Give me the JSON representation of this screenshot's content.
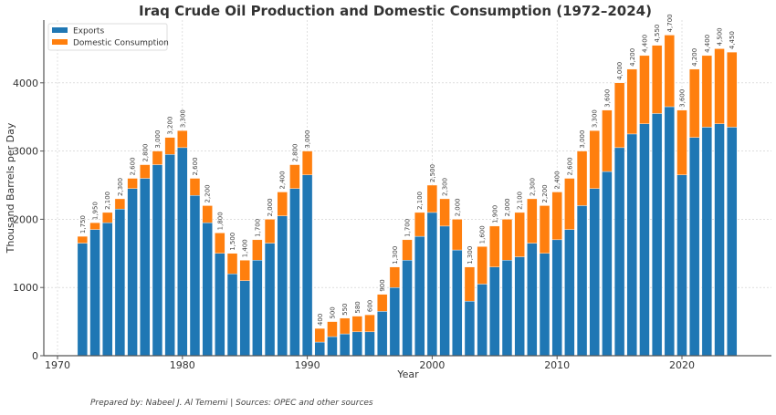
{
  "chart_data": {
    "type": "bar",
    "stacked": true,
    "title": "Iraq Crude Oil Production and Domestic Consumption (1972–2024)",
    "xlabel": "Year",
    "ylabel": "Thousand Barrels per Day",
    "xlim": [
      1968,
      2026
    ],
    "ylim": [
      0,
      4900
    ],
    "xticks": [
      1970,
      1980,
      1990,
      2000,
      2010,
      2020
    ],
    "yticks": [
      0,
      1000,
      2000,
      3000,
      4000
    ],
    "grid": true,
    "legend_position": "top-left",
    "x": [
      1972,
      1973,
      1974,
      1975,
      1976,
      1977,
      1978,
      1979,
      1980,
      1981,
      1982,
      1983,
      1984,
      1985,
      1986,
      1987,
      1988,
      1989,
      1990,
      1991,
      1992,
      1993,
      1994,
      1995,
      1996,
      1997,
      1998,
      1999,
      2000,
      2001,
      2002,
      2003,
      2004,
      2005,
      2006,
      2007,
      2008,
      2009,
      2010,
      2011,
      2012,
      2013,
      2014,
      2015,
      2016,
      2017,
      2018,
      2019,
      2020,
      2021,
      2022,
      2023,
      2024
    ],
    "series": [
      {
        "name": "Exports",
        "color": "#1f77b4",
        "values": [
          1650,
          1850,
          1950,
          2150,
          2450,
          2600,
          2800,
          2950,
          3050,
          2350,
          1950,
          1500,
          1200,
          1100,
          1400,
          1650,
          2050,
          2450,
          2650,
          200,
          280,
          320,
          350,
          350,
          650,
          1000,
          1400,
          1750,
          2100,
          1900,
          1550,
          800,
          1050,
          1300,
          1400,
          1450,
          1650,
          1500,
          1700,
          1850,
          2200,
          2450,
          2700,
          3050,
          3250,
          3400,
          3550,
          3650,
          2650,
          3200,
          3350,
          3400,
          3350
        ]
      },
      {
        "name": "Domestic Consumption",
        "color": "#ff7f0e",
        "values": [
          100,
          100,
          150,
          150,
          150,
          200,
          200,
          250,
          250,
          250,
          250,
          300,
          300,
          300,
          300,
          350,
          350,
          350,
          350,
          200,
          220,
          230,
          230,
          250,
          250,
          300,
          300,
          350,
          400,
          400,
          450,
          500,
          550,
          600,
          600,
          650,
          650,
          700,
          700,
          750,
          800,
          850,
          900,
          950,
          950,
          1000,
          1000,
          1050,
          950,
          1000,
          1050,
          1100,
          1100
        ]
      }
    ],
    "totals": [
      1750,
      1950,
      2100,
      2300,
      2600,
      2800,
      3000,
      3200,
      3300,
      2600,
      2200,
      1800,
      1500,
      1400,
      1700,
      2000,
      2400,
      2800,
      3000,
      400,
      500,
      550,
      580,
      600,
      900,
      1300,
      1700,
      2100,
      2500,
      2300,
      2000,
      1300,
      1600,
      1900,
      2000,
      2100,
      2300,
      2200,
      2400,
      2600,
      3000,
      3300,
      3600,
      4000,
      4200,
      4400,
      4550,
      4700,
      3600,
      4200,
      4400,
      4500,
      4450
    ],
    "data_labels": [
      "1,750",
      "1,950",
      "2,100",
      "2,300",
      "2,600",
      "2,800",
      "3,000",
      "3,200",
      "3,300",
      "2,600",
      "2,200",
      "1,800",
      "1,500",
      "1,400",
      "1,700",
      "2,000",
      "2,400",
      "2,800",
      "3,000",
      "400",
      "500",
      "550",
      "580",
      "600",
      "900",
      "1,300",
      "1,700",
      "2,100",
      "2,500",
      "2,300",
      "2,000",
      "1,300",
      "1,600",
      "1,900",
      "2,000",
      "2,100",
      "2,300",
      "2,200",
      "2,400",
      "2,600",
      "3,000",
      "3,300",
      "3,600",
      "4,000",
      "4,200",
      "4,400",
      "4,550",
      "4,700",
      "3,600",
      "4,200",
      "4,400",
      "4,500",
      "4,450"
    ]
  },
  "footer": "Prepared by: Nabeel J. Al Tememi | Sources: OPEC and other sources"
}
